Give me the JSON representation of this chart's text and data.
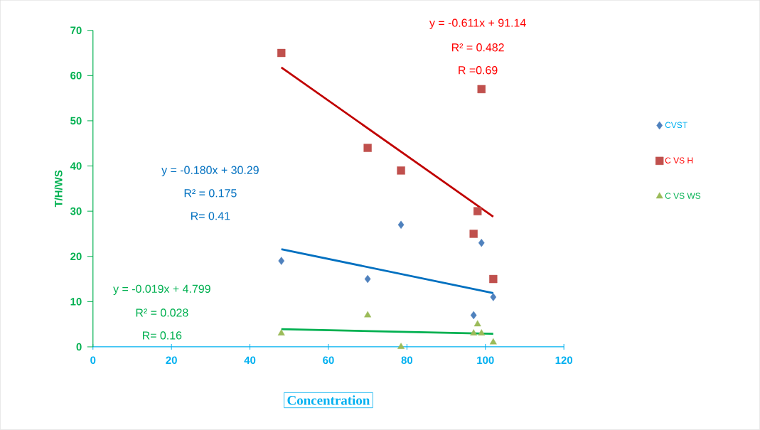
{
  "chart_data": {
    "type": "scatter",
    "xlabel": "Concentration",
    "ylabel": "T/H/WS",
    "xlim": [
      0,
      120
    ],
    "xticks": [
      0,
      20,
      40,
      60,
      80,
      100,
      120
    ],
    "ylim": [
      0,
      70
    ],
    "yticks": [
      0,
      10,
      20,
      30,
      40,
      50,
      60,
      70
    ],
    "grid": false,
    "legend": "right",
    "series": [
      {
        "name": "CVST",
        "color": "#4f81bd",
        "marker": "diamond",
        "x": [
          48,
          70,
          78.5,
          97,
          99,
          102
        ],
        "values": [
          19,
          15,
          27,
          7,
          23,
          11
        ]
      },
      {
        "name": "C VS H",
        "color": "#c0504d",
        "marker": "square",
        "x": [
          48,
          70,
          78.5,
          97,
          98,
          99,
          102
        ],
        "values": [
          65,
          44,
          39,
          25,
          30,
          57,
          15
        ]
      },
      {
        "name": "C VS WS",
        "color": "#9bbb59",
        "marker": "triangle",
        "x": [
          48,
          70,
          78.5,
          97,
          98,
          99,
          102
        ],
        "values": [
          3,
          7,
          0,
          3,
          5,
          3,
          1
        ]
      },
      {
        "type": "line",
        "color": "#0070c0",
        "marker": "none",
        "x": [
          48,
          102
        ],
        "values": [
          21.6,
          11.9
        ]
      },
      {
        "type": "line",
        "color": "#c00000",
        "marker": "none",
        "x": [
          48,
          102
        ],
        "values": [
          61.8,
          28.8
        ]
      },
      {
        "type": "line",
        "color": "#00b050",
        "marker": "none",
        "x": [
          48,
          102
        ],
        "values": [
          3.9,
          2.9
        ]
      }
    ],
    "annotations": [
      "y = -0.611x + 91.14",
      "R² = 0.482",
      "R =0.69",
      "y = -0.180x + 30.29",
      "R² = 0.175",
      "R= 0.41",
      "y = -0.019x + 4.799",
      "R² = 0.028",
      "R=  0.16"
    ]
  }
}
